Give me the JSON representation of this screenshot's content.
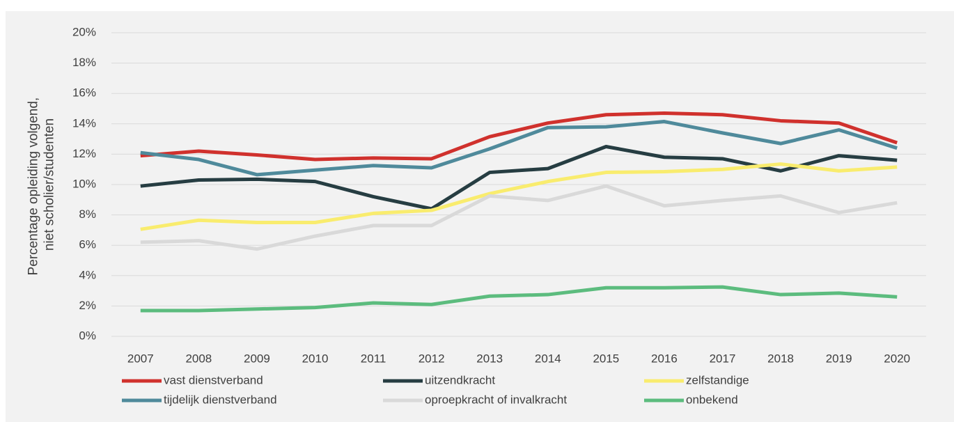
{
  "chart_data": {
    "type": "line",
    "y_label": "Percentage opleiding volgend, niet scholier/studenten",
    "categories": [
      "2007",
      "2008",
      "2009",
      "2010",
      "2011",
      "2012",
      "2013",
      "2014",
      "2015",
      "2016",
      "2017",
      "2018",
      "2019",
      "2020"
    ],
    "series": [
      {
        "name": "vast dienstverband",
        "color": "#d0312d",
        "values": [
          11.9,
          12.2,
          11.95,
          11.65,
          11.75,
          11.7,
          13.15,
          14.05,
          14.6,
          14.7,
          14.6,
          14.2,
          14.05,
          12.75
        ]
      },
      {
        "name": "uitzendkracht",
        "color": "#263d42",
        "values": [
          9.9,
          10.3,
          10.35,
          10.2,
          9.2,
          8.4,
          10.8,
          11.05,
          12.5,
          11.8,
          11.7,
          10.9,
          11.9,
          11.6
        ]
      },
      {
        "name": "zelfstandige",
        "color": "#f9ec6e",
        "values": [
          7.05,
          7.65,
          7.5,
          7.5,
          8.1,
          8.3,
          9.4,
          10.2,
          10.8,
          10.85,
          11.0,
          11.35,
          10.9,
          11.15
        ]
      },
      {
        "name": "tijdelijk dienstverband",
        "color": "#4f8a9b",
        "values": [
          12.1,
          11.65,
          10.65,
          10.95,
          11.25,
          11.1,
          12.35,
          13.75,
          13.8,
          14.15,
          13.4,
          12.7,
          13.6,
          12.4
        ]
      },
      {
        "name": "oproepkracht of invalkracht",
        "color": "#d9d9d9",
        "values": [
          6.2,
          6.3,
          5.75,
          6.6,
          7.3,
          7.3,
          9.25,
          8.95,
          9.9,
          8.6,
          8.95,
          9.25,
          8.15,
          8.8
        ]
      },
      {
        "name": "onbekend",
        "color": "#5cbc7e",
        "values": [
          1.7,
          1.7,
          1.8,
          1.9,
          2.2,
          2.1,
          2.65,
          2.75,
          3.2,
          3.2,
          3.25,
          2.75,
          2.85,
          2.6
        ]
      }
    ],
    "ylim": [
      0,
      20
    ],
    "yticks": [
      {
        "value": 0,
        "label": "0%"
      },
      {
        "value": 2,
        "label": "2%"
      },
      {
        "value": 4,
        "label": "4%"
      },
      {
        "value": 6,
        "label": "6%"
      },
      {
        "value": 8,
        "label": "8%"
      },
      {
        "value": 10,
        "label": "10%"
      },
      {
        "value": 12,
        "label": "12%"
      },
      {
        "value": 14,
        "label": "14%"
      },
      {
        "value": 16,
        "label": "16%"
      },
      {
        "value": 18,
        "label": "18%"
      },
      {
        "value": 20,
        "label": "20%"
      }
    ],
    "grid": true
  }
}
